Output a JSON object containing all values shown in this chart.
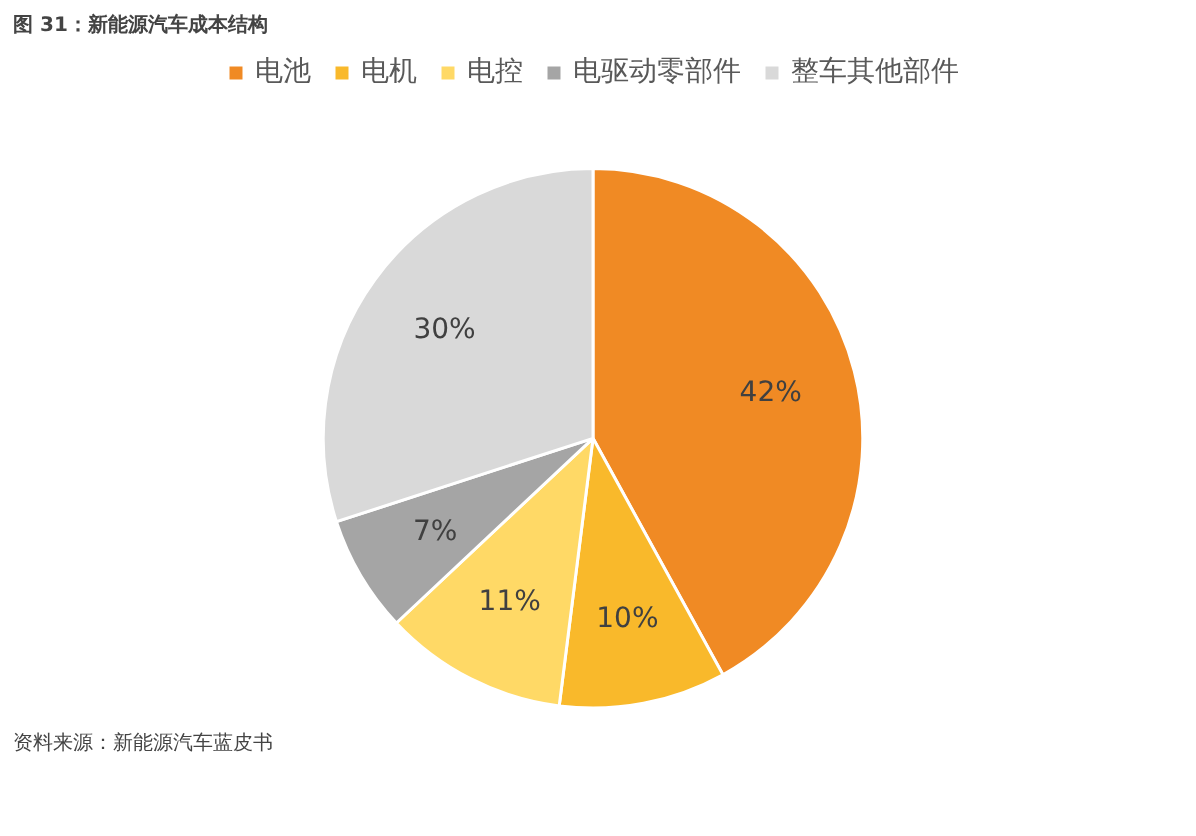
{
  "chart_data": {
    "type": "pie",
    "title": "图 31：新能源汽车成本结构",
    "categories": [
      "电池",
      "电机",
      "电控",
      "电驱动零部件",
      "整车其他部件"
    ],
    "values": [
      42,
      10,
      11,
      7,
      30
    ],
    "colors": [
      "#f08a24",
      "#f9b92b",
      "#ffd966",
      "#a5a5a5",
      "#d9d9d9"
    ],
    "value_labels": [
      "42%",
      "10%",
      "11%",
      "7%",
      "30%"
    ],
    "legend": "top",
    "annotations": [
      "资料来源：新能源汽车蓝皮书"
    ]
  }
}
